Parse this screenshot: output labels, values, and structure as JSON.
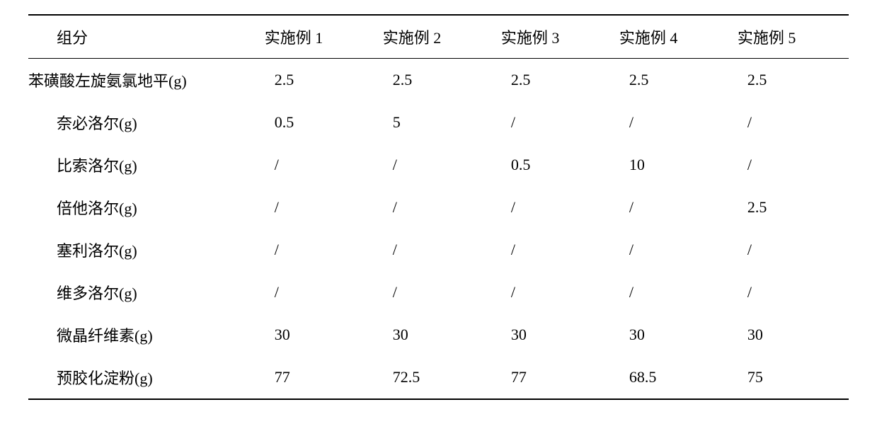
{
  "table": {
    "columns": [
      "组分",
      "实施例 1",
      "实施例 2",
      "实施例 3",
      "实施例 4",
      "实施例 5"
    ],
    "rows": [
      {
        "label": "苯磺酸左旋氨氯地平(g)",
        "values": [
          "2.5",
          "2.5",
          "2.5",
          "2.5",
          "2.5"
        ],
        "outdent": true
      },
      {
        "label": "奈必洛尔(g)",
        "values": [
          "0.5",
          "5",
          "/",
          "/",
          "/"
        ]
      },
      {
        "label": "比索洛尔(g)",
        "values": [
          "/",
          "/",
          "0.5",
          "10",
          "/"
        ]
      },
      {
        "label": "倍他洛尔(g)",
        "values": [
          "/",
          "/",
          "/",
          "/",
          "2.5"
        ]
      },
      {
        "label": "塞利洛尔(g)",
        "values": [
          "/",
          "/",
          "/",
          "/",
          "/"
        ]
      },
      {
        "label": "维多洛尔(g)",
        "values": [
          "/",
          "/",
          "/",
          "/",
          "/"
        ]
      },
      {
        "label": "微晶纤维素(g)",
        "values": [
          "30",
          "30",
          "30",
          "30",
          "30"
        ]
      },
      {
        "label": "预胶化淀粉(g)",
        "values": [
          "77",
          "72.5",
          "77",
          "68.5",
          "75"
        ]
      }
    ]
  }
}
